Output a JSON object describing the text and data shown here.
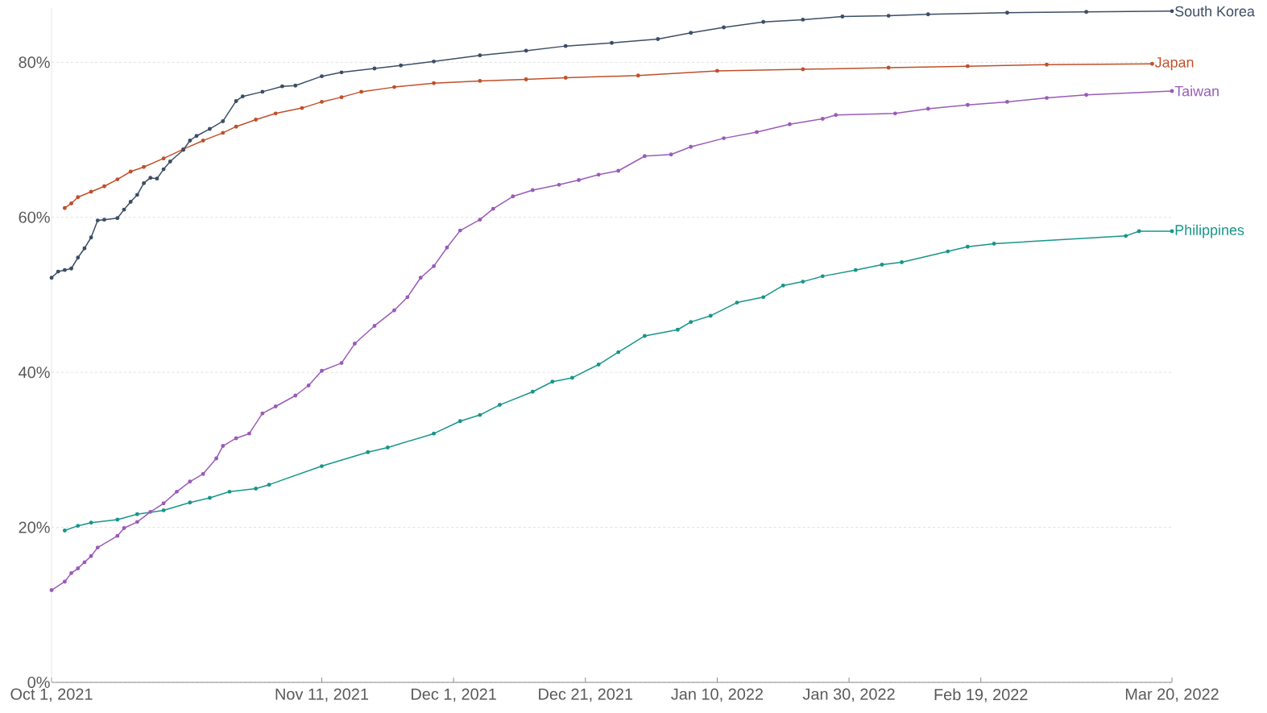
{
  "chart_data": {
    "type": "line",
    "xlim": [
      "2021-10-01",
      "2022-03-20"
    ],
    "xticks": [
      {
        "value": "2021-10-01",
        "label": "Oct 1, 2021"
      },
      {
        "value": "2021-11-11",
        "label": "Nov 11, 2021"
      },
      {
        "value": "2021-12-01",
        "label": "Dec 1, 2021"
      },
      {
        "value": "2021-12-21",
        "label": "Dec 21, 2021"
      },
      {
        "value": "2022-01-10",
        "label": "Jan 10, 2022"
      },
      {
        "value": "2022-01-30",
        "label": "Jan 30, 2022"
      },
      {
        "value": "2022-02-19",
        "label": "Feb 19, 2022"
      },
      {
        "value": "2022-03-20",
        "label": "Mar 20, 2022"
      }
    ],
    "ylim": [
      0,
      87
    ],
    "yticks": [
      {
        "value": 0,
        "label": "0%"
      },
      {
        "value": 20,
        "label": "20%"
      },
      {
        "value": 40,
        "label": "40%"
      },
      {
        "value": 60,
        "label": "60%"
      },
      {
        "value": 80,
        "label": "80%"
      }
    ],
    "grid": "y",
    "legend": false,
    "marker": "circle",
    "line_style": "solid",
    "series": [
      {
        "name": "South Korea",
        "color": "#3c4e66",
        "x": [
          "2021-10-01",
          "2021-10-02",
          "2021-10-03",
          "2021-10-04",
          "2021-10-05",
          "2021-10-06",
          "2021-10-07",
          "2021-10-08",
          "2021-10-09",
          "2021-10-11",
          "2021-10-12",
          "2021-10-13",
          "2021-10-14",
          "2021-10-15",
          "2021-10-16",
          "2021-10-17",
          "2021-10-18",
          "2021-10-19",
          "2021-10-21",
          "2021-10-22",
          "2021-10-23",
          "2021-10-25",
          "2021-10-27",
          "2021-10-29",
          "2021-10-30",
          "2021-11-02",
          "2021-11-05",
          "2021-11-07",
          "2021-11-11",
          "2021-11-14",
          "2021-11-19",
          "2021-11-23",
          "2021-11-28",
          "2021-12-05",
          "2021-12-12",
          "2021-12-18",
          "2021-12-25",
          "2022-01-01",
          "2022-01-06",
          "2022-01-11",
          "2022-01-17",
          "2022-01-23",
          "2022-01-29",
          "2022-02-05",
          "2022-02-11",
          "2022-02-23",
          "2022-03-07",
          "2022-03-20"
        ],
        "values": [
          52.2,
          53,
          53.2,
          53.4,
          54.8,
          56,
          57.4,
          59.6,
          59.7,
          59.9,
          61,
          62,
          62.9,
          64.4,
          65.1,
          65,
          66.2,
          67.2,
          68.7,
          69.9,
          70.5,
          71.4,
          72.4,
          75,
          75.6,
          76.2,
          76.9,
          77,
          78.2,
          78.7,
          79.2,
          79.6,
          80.1,
          80.9,
          81.5,
          82.1,
          82.5,
          83,
          83.8,
          84.5,
          85.2,
          85.5,
          85.9,
          86,
          86.2,
          86.4,
          86.5,
          86.6
        ]
      },
      {
        "name": "Japan",
        "color": "#c0502a",
        "x": [
          "2021-10-03",
          "2021-10-04",
          "2021-10-05",
          "2021-10-07",
          "2021-10-09",
          "2021-10-11",
          "2021-10-13",
          "2021-10-15",
          "2021-10-18",
          "2021-10-21",
          "2021-10-24",
          "2021-10-27",
          "2021-10-29",
          "2021-11-01",
          "2021-11-04",
          "2021-11-08",
          "2021-11-11",
          "2021-11-14",
          "2021-11-17",
          "2021-11-22",
          "2021-11-28",
          "2021-12-05",
          "2021-12-12",
          "2021-12-18",
          "2021-12-29",
          "2022-01-10",
          "2022-01-23",
          "2022-02-05",
          "2022-02-17",
          "2022-03-01",
          "2022-03-17"
        ],
        "values": [
          61.2,
          61.8,
          62.6,
          63.3,
          64,
          64.9,
          65.9,
          66.5,
          67.6,
          68.8,
          69.9,
          70.9,
          71.7,
          72.6,
          73.4,
          74.1,
          74.9,
          75.5,
          76.2,
          76.8,
          77.3,
          77.6,
          77.8,
          78,
          78.3,
          78.9,
          79.1,
          79.3,
          79.5,
          79.7,
          79.8
        ]
      },
      {
        "name": "Taiwan",
        "color": "#9a5bb8",
        "x": [
          "2021-10-01",
          "2021-10-03",
          "2021-10-04",
          "2021-10-05",
          "2021-10-06",
          "2021-10-07",
          "2021-10-08",
          "2021-10-11",
          "2021-10-12",
          "2021-10-14",
          "2021-10-16",
          "2021-10-18",
          "2021-10-20",
          "2021-10-22",
          "2021-10-24",
          "2021-10-26",
          "2021-10-27",
          "2021-10-29",
          "2021-10-31",
          "2021-11-02",
          "2021-11-04",
          "2021-11-07",
          "2021-11-09",
          "2021-11-11",
          "2021-11-14",
          "2021-11-16",
          "2021-11-19",
          "2021-11-22",
          "2021-11-24",
          "2021-11-26",
          "2021-11-28",
          "2021-11-30",
          "2021-12-02",
          "2021-12-05",
          "2021-12-07",
          "2021-12-10",
          "2021-12-13",
          "2021-12-17",
          "2021-12-20",
          "2021-12-23",
          "2021-12-26",
          "2021-12-30",
          "2022-01-03",
          "2022-01-06",
          "2022-01-11",
          "2022-01-16",
          "2022-01-21",
          "2022-01-26",
          "2022-01-28",
          "2022-02-06",
          "2022-02-11",
          "2022-02-17",
          "2022-02-23",
          "2022-03-01",
          "2022-03-07",
          "2022-03-20"
        ],
        "values": [
          11.9,
          13,
          14.1,
          14.7,
          15.5,
          16.3,
          17.4,
          18.9,
          19.9,
          20.7,
          22,
          23.1,
          24.6,
          25.9,
          26.9,
          28.9,
          30.5,
          31.5,
          32.1,
          34.7,
          35.6,
          37,
          38.3,
          40.2,
          41.2,
          43.7,
          46,
          48,
          49.7,
          52.2,
          53.7,
          56.1,
          58.3,
          59.7,
          61.1,
          62.7,
          63.5,
          64.2,
          64.8,
          65.5,
          66,
          67.9,
          68.1,
          69.1,
          70.2,
          71,
          72,
          72.7,
          73.2,
          73.4,
          74,
          74.5,
          74.9,
          75.4,
          75.8,
          76.3
        ]
      },
      {
        "name": "Philippines",
        "color": "#17968a",
        "x": [
          "2021-10-03",
          "2021-10-05",
          "2021-10-07",
          "2021-10-11",
          "2021-10-14",
          "2021-10-18",
          "2021-10-22",
          "2021-10-25",
          "2021-10-28",
          "2021-11-01",
          "2021-11-03",
          "2021-11-11",
          "2021-11-18",
          "2021-11-21",
          "2021-11-28",
          "2021-12-02",
          "2021-12-05",
          "2021-12-08",
          "2021-12-13",
          "2021-12-16",
          "2021-12-19",
          "2021-12-23",
          "2021-12-26",
          "2021-12-30",
          "2022-01-04",
          "2022-01-06",
          "2022-01-09",
          "2022-01-13",
          "2022-01-17",
          "2022-01-20",
          "2022-01-23",
          "2022-01-26",
          "2022-01-31",
          "2022-02-04",
          "2022-02-07",
          "2022-02-14",
          "2022-02-17",
          "2022-02-21",
          "2022-03-13",
          "2022-03-15",
          "2022-03-20"
        ],
        "values": [
          19.6,
          20.2,
          20.6,
          21,
          21.7,
          22.2,
          23.2,
          23.8,
          24.6,
          25,
          25.5,
          27.9,
          29.7,
          30.3,
          32.1,
          33.7,
          34.5,
          35.8,
          37.5,
          38.8,
          39.3,
          41,
          42.6,
          44.7,
          45.5,
          46.5,
          47.3,
          49,
          49.7,
          51.2,
          51.7,
          52.4,
          53.2,
          53.9,
          54.2,
          55.6,
          56.2,
          56.6,
          57.6,
          58.2,
          58.2
        ]
      }
    ]
  }
}
